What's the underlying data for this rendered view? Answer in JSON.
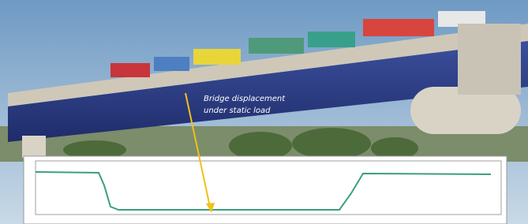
{
  "annotation": {
    "lines": [
      "Bridge displacement",
      "under static load"
    ]
  }
}
